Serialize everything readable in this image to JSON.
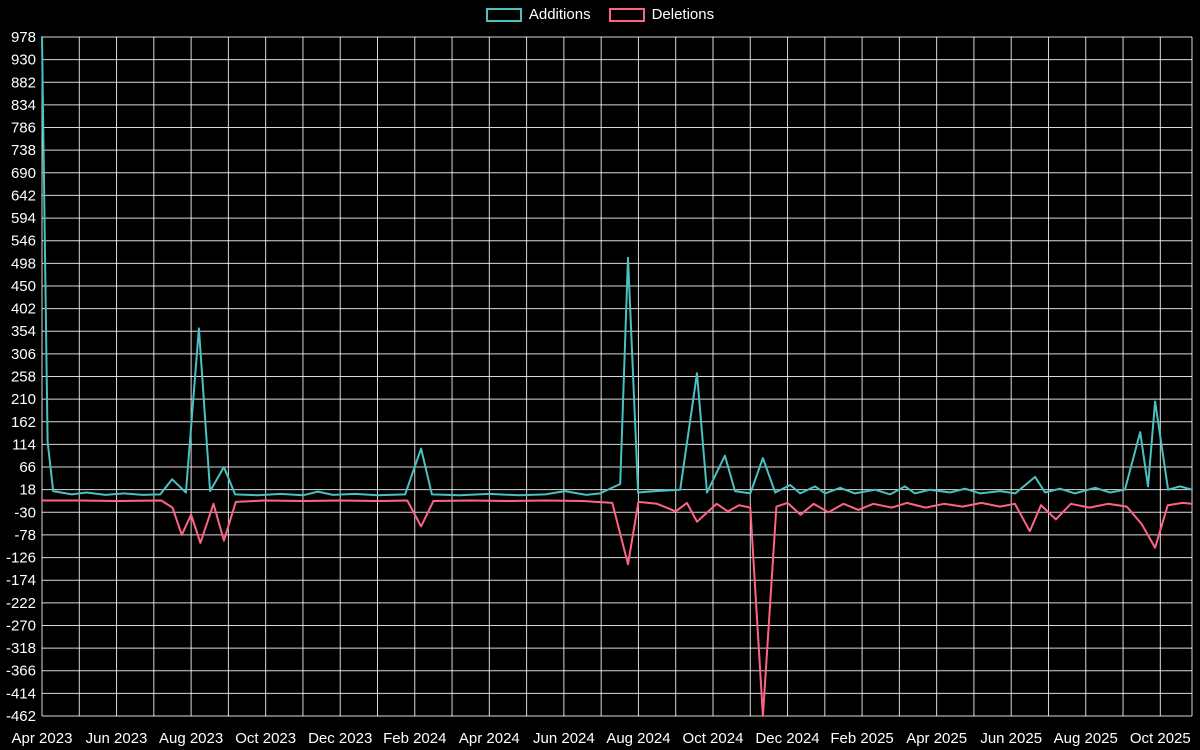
{
  "chart_data": {
    "type": "line",
    "title": "",
    "background_color": "#000000",
    "grid": true,
    "grid_color": "#ffffff",
    "text_color": "#ffffff",
    "legend": {
      "position": "top-center",
      "items": [
        {
          "label": "Additions",
          "color": "#4bc0c0"
        },
        {
          "label": "Deletions",
          "color": "#ff6384"
        }
      ]
    },
    "x_axis": {
      "unit": "months since Apr 2023",
      "min": 0,
      "max": 30.85,
      "minor_grid_step_months": 1,
      "tick_positions_months": [
        0,
        2,
        4,
        6,
        8,
        10,
        12,
        14,
        16,
        18,
        20,
        22,
        24,
        26,
        28,
        30
      ],
      "tick_labels": [
        "Apr 2023",
        "Jun 2023",
        "Aug 2023",
        "Oct 2023",
        "Dec 2023",
        "Feb 2024",
        "Apr 2024",
        "Jun 2024",
        "Aug 2024",
        "Oct 2024",
        "Dec 2024",
        "Feb 2025",
        "Apr 2025",
        "Jun 2025",
        "Aug 2025",
        "Oct 2025"
      ]
    },
    "y_axis": {
      "min": -462,
      "max": 978,
      "step": 48,
      "tick_labels": [
        "978",
        "930",
        "882",
        "834",
        "786",
        "738",
        "690",
        "642",
        "594",
        "546",
        "498",
        "450",
        "402",
        "354",
        "306",
        "258",
        "210",
        "162",
        "114",
        "66",
        "18",
        "-30",
        "-78",
        "-126",
        "-174",
        "-222",
        "-270",
        "-318",
        "-366",
        "-414",
        "-462"
      ]
    },
    "series": [
      {
        "name": "Deletions",
        "color": "#ff6384",
        "points": [
          [
            0,
            -5
          ],
          [
            1.0,
            -5
          ],
          [
            2.0,
            -6
          ],
          [
            3.2,
            -5
          ],
          [
            3.5,
            -20
          ],
          [
            3.75,
            -78
          ],
          [
            4.0,
            -35
          ],
          [
            4.25,
            -95
          ],
          [
            4.6,
            -12
          ],
          [
            4.88,
            -90
          ],
          [
            5.2,
            -8
          ],
          [
            6.0,
            -5
          ],
          [
            7.0,
            -6
          ],
          [
            8.0,
            -5
          ],
          [
            9.0,
            -6
          ],
          [
            9.8,
            -5
          ],
          [
            10.17,
            -60
          ],
          [
            10.5,
            -6
          ],
          [
            11.5,
            -5
          ],
          [
            12.5,
            -6
          ],
          [
            13.5,
            -5
          ],
          [
            14.5,
            -6
          ],
          [
            15.3,
            -10
          ],
          [
            15.72,
            -140
          ],
          [
            16.0,
            -8
          ],
          [
            16.5,
            -12
          ],
          [
            17.0,
            -28
          ],
          [
            17.3,
            -10
          ],
          [
            17.57,
            -50
          ],
          [
            17.85,
            -30
          ],
          [
            18.1,
            -12
          ],
          [
            18.4,
            -28
          ],
          [
            18.7,
            -15
          ],
          [
            19.0,
            -20
          ],
          [
            19.34,
            -462
          ],
          [
            19.7,
            -18
          ],
          [
            20.0,
            -10
          ],
          [
            20.35,
            -35
          ],
          [
            20.7,
            -12
          ],
          [
            21.1,
            -30
          ],
          [
            21.5,
            -12
          ],
          [
            21.9,
            -25
          ],
          [
            22.3,
            -12
          ],
          [
            22.8,
            -20
          ],
          [
            23.2,
            -10
          ],
          [
            23.7,
            -20
          ],
          [
            24.2,
            -12
          ],
          [
            24.7,
            -18
          ],
          [
            25.2,
            -10
          ],
          [
            25.7,
            -18
          ],
          [
            26.1,
            -12
          ],
          [
            26.5,
            -70
          ],
          [
            26.8,
            -15
          ],
          [
            27.2,
            -45
          ],
          [
            27.6,
            -12
          ],
          [
            28.1,
            -20
          ],
          [
            28.6,
            -12
          ],
          [
            29.1,
            -18
          ],
          [
            29.5,
            -55
          ],
          [
            29.86,
            -105
          ],
          [
            30.2,
            -15
          ],
          [
            30.6,
            -10
          ],
          [
            30.85,
            -12
          ]
        ]
      },
      {
        "name": "Additions",
        "color": "#4bc0c0",
        "points": [
          [
            0,
            978
          ],
          [
            0.15,
            120
          ],
          [
            0.3,
            15
          ],
          [
            0.8,
            8
          ],
          [
            1.2,
            12
          ],
          [
            1.7,
            7
          ],
          [
            2.2,
            10
          ],
          [
            2.7,
            7
          ],
          [
            3.17,
            8
          ],
          [
            3.49,
            40
          ],
          [
            3.86,
            12
          ],
          [
            4.21,
            360
          ],
          [
            4.51,
            15
          ],
          [
            4.88,
            66
          ],
          [
            5.18,
            8
          ],
          [
            5.8,
            6
          ],
          [
            6.4,
            9
          ],
          [
            7.0,
            6
          ],
          [
            7.4,
            14
          ],
          [
            7.8,
            7
          ],
          [
            8.4,
            9
          ],
          [
            9.0,
            6
          ],
          [
            9.74,
            8
          ],
          [
            10.17,
            105
          ],
          [
            10.46,
            8
          ],
          [
            11.2,
            6
          ],
          [
            12.0,
            9
          ],
          [
            12.8,
            6
          ],
          [
            13.5,
            8
          ],
          [
            14.03,
            15
          ],
          [
            14.6,
            7
          ],
          [
            14.97,
            10
          ],
          [
            15.51,
            30
          ],
          [
            15.72,
            510
          ],
          [
            15.99,
            12
          ],
          [
            16.45,
            15
          ],
          [
            17.12,
            18
          ],
          [
            17.57,
            265
          ],
          [
            17.84,
            12
          ],
          [
            18.32,
            90
          ],
          [
            18.59,
            15
          ],
          [
            19.0,
            10
          ],
          [
            19.34,
            85
          ],
          [
            19.67,
            12
          ],
          [
            20.07,
            28
          ],
          [
            20.34,
            10
          ],
          [
            20.74,
            25
          ],
          [
            21.01,
            10
          ],
          [
            21.41,
            22
          ],
          [
            21.81,
            10
          ],
          [
            22.35,
            18
          ],
          [
            22.75,
            8
          ],
          [
            23.15,
            25
          ],
          [
            23.42,
            10
          ],
          [
            23.82,
            18
          ],
          [
            24.36,
            12
          ],
          [
            24.76,
            20
          ],
          [
            25.17,
            10
          ],
          [
            25.7,
            15
          ],
          [
            26.11,
            10
          ],
          [
            26.64,
            45
          ],
          [
            26.91,
            12
          ],
          [
            27.31,
            20
          ],
          [
            27.71,
            10
          ],
          [
            28.25,
            22
          ],
          [
            28.65,
            12
          ],
          [
            29.05,
            18
          ],
          [
            29.46,
            140
          ],
          [
            29.67,
            25
          ],
          [
            29.86,
            205
          ],
          [
            30.21,
            18
          ],
          [
            30.53,
            25
          ],
          [
            30.85,
            18
          ]
        ]
      }
    ]
  }
}
